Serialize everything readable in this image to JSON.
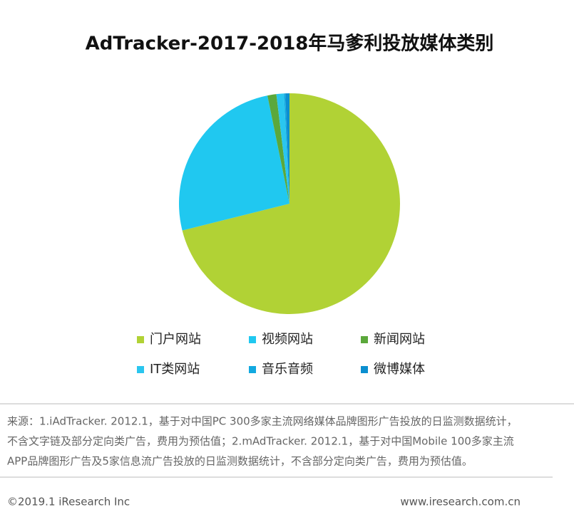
{
  "chart_data": {
    "type": "pie",
    "title": "AdTracker-2017-2018年马爹利投放媒体类别",
    "categories": [
      "门户网站",
      "视频网站",
      "新闻网站",
      "IT类网站",
      "音乐音频",
      "微博媒体"
    ],
    "values": [
      71.1,
      25.7,
      1.3,
      1.1,
      0.2,
      0.6
    ],
    "colors": [
      "#b1d235",
      "#20c8f0",
      "#5ba83b",
      "#2ac6ef",
      "#12a9e0",
      "#0b8fd0"
    ]
  },
  "source": [
    "来源：1.iAdTracker. 2012.1，基于对中国PC 300多家主流网络媒体品牌图形广告投放的日监测数据统计，",
    "不含文字链及部分定向类广告，费用为预估值；2.mAdTracker. 2012.1，基于对中国Mobile 100多家主流",
    "APP品牌图形广告及5家信息流广告投放的日监测数据统计，不含部分定向类广告，费用为预估值。"
  ],
  "footer": {
    "copyright": "©2019.1 iResearch Inc",
    "website": "www.iresearch.com.cn"
  }
}
